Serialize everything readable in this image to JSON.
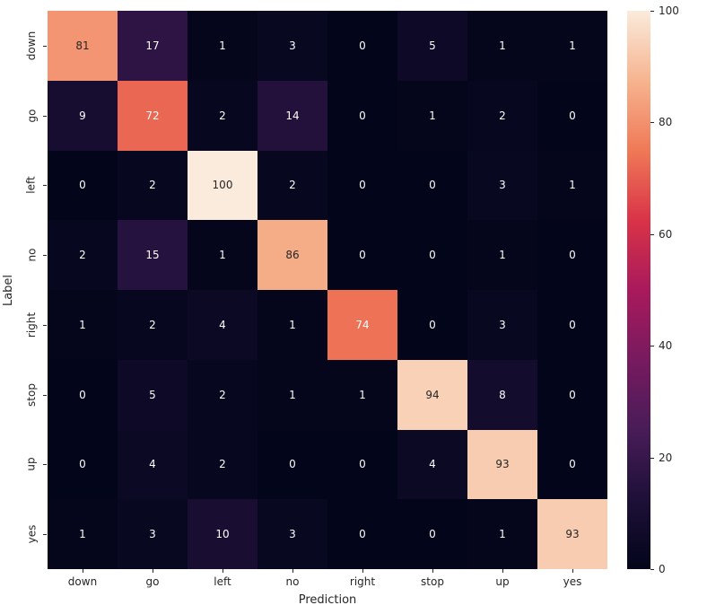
{
  "figure": {
    "background": "#ffffff"
  },
  "chart_data": {
    "type": "heatmap",
    "title": "",
    "xlabel": "Prediction",
    "ylabel": "Label",
    "x_categories": [
      "down",
      "go",
      "left",
      "no",
      "right",
      "stop",
      "up",
      "yes"
    ],
    "y_categories": [
      "down",
      "go",
      "left",
      "no",
      "right",
      "stop",
      "up",
      "yes"
    ],
    "matrix": [
      [
        81,
        17,
        1,
        3,
        0,
        5,
        1,
        1
      ],
      [
        9,
        72,
        2,
        14,
        0,
        1,
        2,
        0
      ],
      [
        0,
        2,
        100,
        2,
        0,
        0,
        3,
        1
      ],
      [
        2,
        15,
        1,
        86,
        0,
        0,
        1,
        0
      ],
      [
        1,
        2,
        4,
        1,
        74,
        0,
        3,
        0
      ],
      [
        0,
        5,
        2,
        1,
        1,
        94,
        8,
        0
      ],
      [
        0,
        4,
        2,
        0,
        0,
        4,
        93,
        0
      ],
      [
        1,
        3,
        10,
        3,
        0,
        0,
        1,
        93
      ]
    ],
    "vmin": 0,
    "vmax": 100,
    "colormap": {
      "name": "rocket",
      "stops": [
        [
          0,
          "#03051A"
        ],
        [
          0.125,
          "#1E1038"
        ],
        [
          0.25,
          "#481C58"
        ],
        [
          0.375,
          "#781A5F"
        ],
        [
          0.5,
          "#A91A5C"
        ],
        [
          0.625,
          "#D93347"
        ],
        [
          0.75,
          "#F07957"
        ],
        [
          0.875,
          "#F6B48F"
        ],
        [
          1,
          "#FAEBDC"
        ]
      ]
    },
    "annotation_colors": {
      "dark": "#262626",
      "light": "#ffffff"
    },
    "colorbar_ticks": [
      0,
      20,
      40,
      60,
      80,
      100
    ],
    "colorbar_position": "right",
    "grid": false
  }
}
